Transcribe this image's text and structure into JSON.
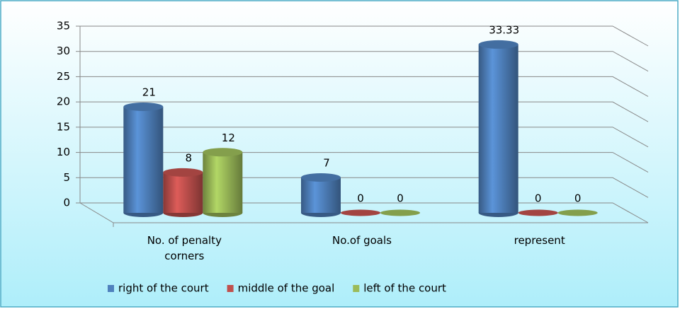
{
  "chart_data": {
    "type": "bar3d",
    "categories": [
      "No. of  penalty corners",
      "No.of goals",
      "represent"
    ],
    "series": [
      {
        "name": "right of the court",
        "color": "#4f81bd",
        "values": [
          21,
          7,
          33.33
        ]
      },
      {
        "name": "middle of the goal",
        "color": "#c0504d",
        "values": [
          8,
          0,
          0
        ]
      },
      {
        "name": "left of the court",
        "color": "#9bbb59",
        "values": [
          12,
          0,
          0
        ]
      }
    ],
    "ylim": [
      0,
      35
    ],
    "yticks": [
      0,
      5,
      10,
      15,
      20,
      25,
      30,
      35
    ],
    "grid": true,
    "legend": "bottom"
  }
}
